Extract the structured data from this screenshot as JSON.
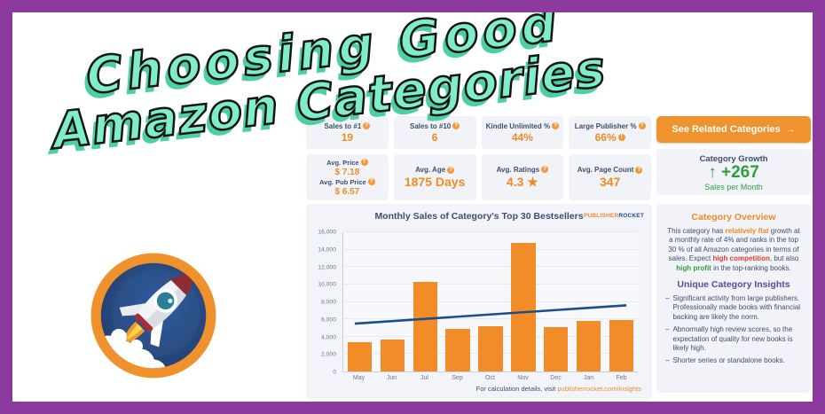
{
  "title_overlay": {
    "line1": "Choosing Good",
    "line2": "Amazon Categories"
  },
  "icons": {
    "help": "?",
    "alert": "!",
    "arrow_right": "→",
    "arrow_up": "↑",
    "dash": "–"
  },
  "stats": {
    "row1": [
      {
        "label": "Sales to #1",
        "value": "19"
      },
      {
        "label": "Sales to #10",
        "value": "6"
      },
      {
        "label": "Kindle Unlimited %",
        "value": "44%"
      },
      {
        "label": "Large Publisher %",
        "value": "66%"
      }
    ],
    "row2": {
      "price_card": {
        "label1": "Avg. Price",
        "value1": "$ 7.18",
        "label2": "Avg. Pub Price",
        "value2": "$ 6.57"
      },
      "age_card": {
        "label": "Avg. Age",
        "value": "1875 Days"
      },
      "ratings_card": {
        "label": "Avg. Ratings",
        "value": "4.3 ★"
      },
      "pages_card": {
        "label": "Avg. Page Count",
        "value": "347"
      }
    }
  },
  "right_panel": {
    "related_button": {
      "label": "See Related Categories"
    },
    "growth": {
      "title": "Category Growth",
      "value": "+267",
      "subtitle": "Sales per Month"
    },
    "overview": {
      "heading": "Category Overview",
      "seg1": "This category has ",
      "seg2": "relatively flat",
      "seg3": " growth at a monthly rate of 4% and ranks in the top 30 % of all Amazon categories in terms of sales. Expect ",
      "seg4": "high competition",
      "seg5": ", but also ",
      "seg6": "high profit",
      "seg7": " in the top-ranking books.",
      "insights_heading": "Unique Category Insights",
      "bullets": [
        "Significant activity from large publishers. Professionally made books with financial backing are likely the norm.",
        "Abnormally high review scores, so the expectation of quality for new books is likely high.",
        "Shorter series or standalone books."
      ]
    }
  },
  "chart_data": {
    "type": "bar",
    "title": "Monthly Sales of Category's Top 30 Bestsellers",
    "brand": {
      "left": "PUBLISHER",
      "right": "ROCKET"
    },
    "categories": [
      "May",
      "Jun",
      "Jul",
      "Sep",
      "Oct",
      "Nov",
      "Dec",
      "Jan",
      "Feb"
    ],
    "series": [
      {
        "name": "Monthly Sales",
        "type": "bar",
        "color": "#f28c28",
        "values": [
          3400,
          3650,
          10300,
          4900,
          5200,
          14800,
          5100,
          5800,
          5900
        ]
      },
      {
        "name": "Trend",
        "type": "line",
        "color": "#1d4e89",
        "values": [
          5500,
          5763,
          6025,
          6288,
          6550,
          6813,
          7075,
          7338,
          7600
        ]
      }
    ],
    "ylim": [
      0,
      16000
    ],
    "ytick_step": 2000,
    "grid": true,
    "footer": {
      "text": "For calculation details, visit ",
      "link": "publisherrocket.com/insights"
    }
  },
  "colors": {
    "border_purple": "#8d3a9e",
    "title_mint": "#7feccb",
    "title_shadow": "#4ccfa2",
    "accent_orange": "#ef8b23",
    "navy_text": "#3e4f6d",
    "green": "#2f9e3f",
    "red": "#d9412f",
    "insight_purple": "#5b4a9e",
    "bar_orange": "#f28c28",
    "trend_navy": "#1d4e89"
  }
}
